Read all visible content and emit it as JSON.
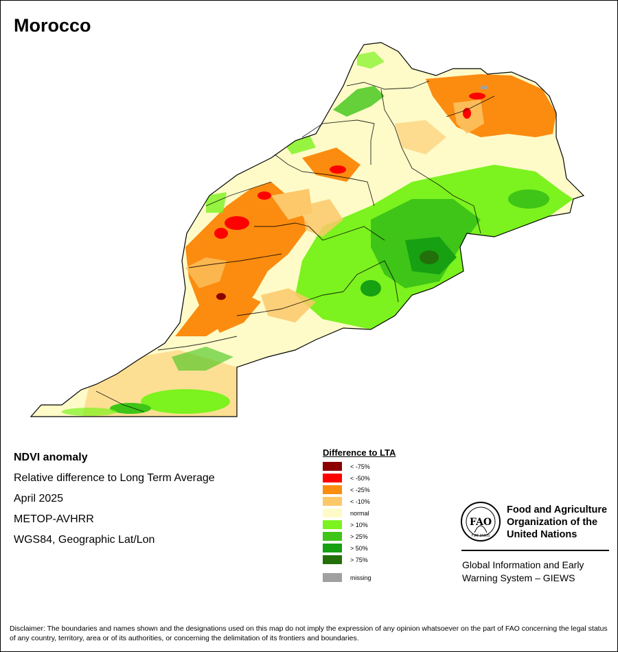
{
  "map": {
    "title": "Morocco",
    "info_lines": [
      "NDVI anomaly",
      "Relative difference to Long Term Average",
      "April 2025",
      "METOP-AVHRR",
      "WGS84, Geographic Lat/Lon"
    ]
  },
  "legend": {
    "title": "Difference to LTA",
    "items": [
      {
        "label": "< -75%",
        "color": "#8b0000"
      },
      {
        "label": "< -50%",
        "color": "#ff0000"
      },
      {
        "label": "< -25%",
        "color": "#fb8c10"
      },
      {
        "label": "< -10%",
        "color": "#fcc86a"
      },
      {
        "label": "normal",
        "color": "#fefbc8"
      },
      {
        "label": "> 10%",
        "color": "#7cf21e"
      },
      {
        "label": "> 25%",
        "color": "#3ec517"
      },
      {
        "label": "> 50%",
        "color": "#16a012"
      },
      {
        "label": "> 75%",
        "color": "#23700a"
      }
    ],
    "missing": {
      "label": "missing",
      "color": "#a0a0a0"
    }
  },
  "branding": {
    "org_name": "Food and Agriculture Organization of the United Nations",
    "logo_letters": "FAO",
    "logo_ring": "FIAT PANIS",
    "system_name": "Global Information and Early Warning System – GIEWS"
  },
  "disclaimer": "Disclaimer: The boundaries and names shown and the designations used on this map do not imply the expression of any opinion whatsoever on the part of FAO concerning the legal status of any country, territory, area or of its authorities, or concerning the delimitation of its frontiers and boundaries."
}
